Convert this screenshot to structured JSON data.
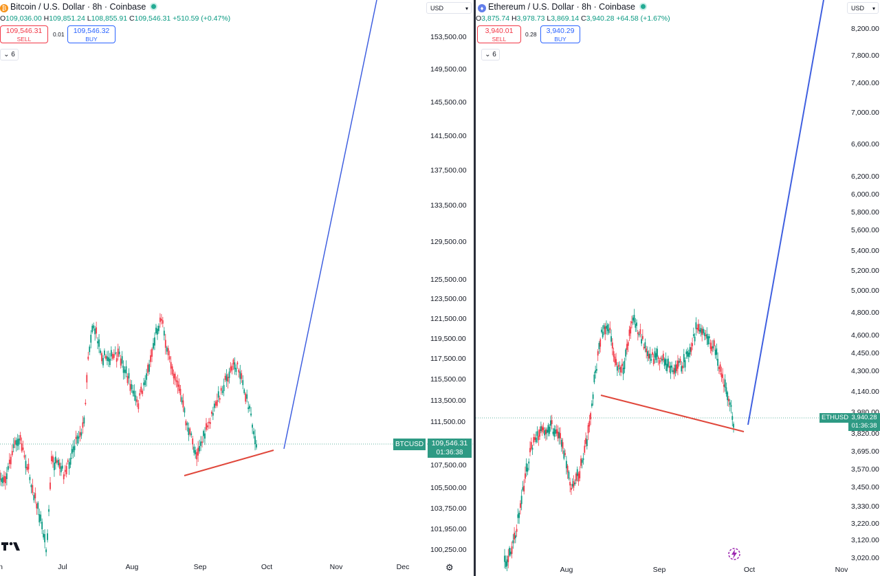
{
  "left": {
    "title": "Bitcoin / U.S. Dollar · 8h · Coinbase",
    "coin_icon": "bitcoin-coin-icon",
    "coin_glyph": "₿",
    "coin_color": "#f7931a",
    "ohlc": {
      "o": "109,036.00",
      "h": "109,851.24",
      "l": "108,855.91",
      "c": "109,546.31",
      "chg": "+510.59 (+0.47%)"
    },
    "sell_price": "109,546.31",
    "sell_label": "SELL",
    "spread": "0.01",
    "buy_price": "109,546.32",
    "buy_label": "BUY",
    "indicator_count": "6",
    "currency": "USD",
    "price_ticks": [
      "153,500.00",
      "149,500.00",
      "145,500.00",
      "141,500.00",
      "137,500.00",
      "133,500.00",
      "129,500.00",
      "125,500.00",
      "123,500.00",
      "121,500.00",
      "119,500.00",
      "117,500.00",
      "115,500.00",
      "113,500.00",
      "111,500.00",
      "107,500.00",
      "105,500.00",
      "103,750.00",
      "101,950.00",
      "100,250.00"
    ],
    "time_labels": [
      "n",
      "Jul",
      "Aug",
      "Sep",
      "Oct",
      "Nov",
      "Dec"
    ],
    "symbol_tag": "BTCUSD",
    "last_price": "109,546.31",
    "countdown": "01:36:38"
  },
  "right": {
    "title": "Ethereum / U.S. Dollar · 8h · Coinbase",
    "coin_icon": "ethereum-coin-icon",
    "coin_glyph": "♦",
    "coin_color": "#627eea",
    "ohlc": {
      "o": "3,875.74",
      "h": "3,978.73",
      "l": "3,869.14",
      "c": "3,940.28",
      "chg": "+64.58 (+1.67%)"
    },
    "sell_price": "3,940.01",
    "sell_label": "SELL",
    "spread": "0.28",
    "buy_price": "3,940.29",
    "buy_label": "BUY",
    "indicator_count": "6",
    "currency": "USD",
    "price_ticks": [
      "8,200.00",
      "7,800.00",
      "7,400.00",
      "7,000.00",
      "6,600.00",
      "6,200.00",
      "6,000.00",
      "5,800.00",
      "5,600.00",
      "5,400.00",
      "5,200.00",
      "5,000.00",
      "4,800.00",
      "4,600.00",
      "4,450.00",
      "4,300.00",
      "4,140.00",
      "3,980.00",
      "3,820.00",
      "3,695.00",
      "3,570.00",
      "3,450.00",
      "3,330.00",
      "3,220.00",
      "3,120.00",
      "3,020.00"
    ],
    "time_labels": [
      "Aug",
      "Sep",
      "Oct",
      "Nov"
    ],
    "symbol_tag": "ETHUSD",
    "last_price": "3,940.28",
    "countdown": "01:36:38"
  },
  "colors": {
    "up": "#089981",
    "down": "#f23645",
    "projection_line": "#3f5fe0",
    "support_line": "#e0473b",
    "last_tag": "#2e9a84"
  },
  "icons": {
    "live": "live-status-dot-icon",
    "chevron": "chevron-down-icon",
    "settings": "gear-icon",
    "logo": "tradingview-logo-icon",
    "alert": "lightning-alert-icon"
  }
}
